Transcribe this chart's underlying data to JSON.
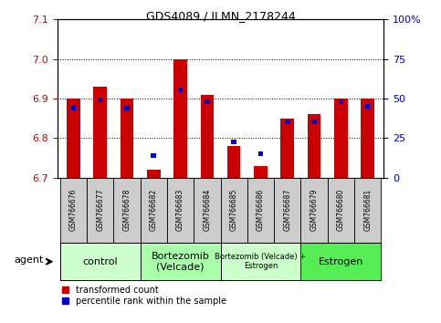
{
  "title": "GDS4089 / ILMN_2178244",
  "samples": [
    "GSM766676",
    "GSM766677",
    "GSM766678",
    "GSM766682",
    "GSM766683",
    "GSM766684",
    "GSM766685",
    "GSM766686",
    "GSM766687",
    "GSM766679",
    "GSM766680",
    "GSM766681"
  ],
  "red_values": [
    6.9,
    6.93,
    6.9,
    6.72,
    7.0,
    6.91,
    6.78,
    6.73,
    6.85,
    6.86,
    6.9,
    6.9
  ],
  "blue_values": [
    6.87,
    6.89,
    6.87,
    6.75,
    6.915,
    6.885,
    6.785,
    6.755,
    6.835,
    6.835,
    6.885,
    6.875
  ],
  "y_min": 6.7,
  "y_max": 7.1,
  "y_ticks_left": [
    6.7,
    6.8,
    6.9,
    7.0,
    7.1
  ],
  "y_ticks_right": [
    0,
    25,
    50,
    75,
    100
  ],
  "groups": [
    {
      "label": "control",
      "start": 0,
      "end": 3,
      "color": "#ccffcc",
      "fontsize": 8
    },
    {
      "label": "Bortezomib\n(Velcade)",
      "start": 3,
      "end": 6,
      "color": "#aaffaa",
      "fontsize": 8
    },
    {
      "label": "Bortezomib (Velcade) +\nEstrogen",
      "start": 6,
      "end": 9,
      "color": "#ccffcc",
      "fontsize": 6
    },
    {
      "label": "Estrogen",
      "start": 9,
      "end": 12,
      "color": "#55ee55",
      "fontsize": 8
    }
  ],
  "bar_width": 0.5,
  "red_color": "#cc0000",
  "blue_color": "#0000cc",
  "title_color": "#000000",
  "left_axis_color": "#cc0000",
  "right_axis_color": "#0000cc",
  "bg_color": "#ffffff",
  "plot_bg_color": "#ffffff",
  "grid_color": "#000000",
  "tick_bg_color": "#cccccc",
  "legend_red_label": "transformed count",
  "legend_blue_label": "percentile rank within the sample",
  "agent_label": "agent"
}
